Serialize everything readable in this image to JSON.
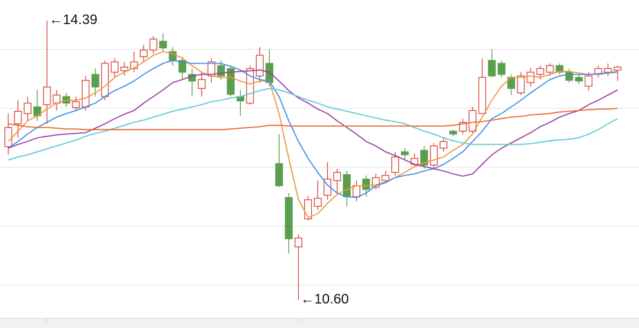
{
  "chart_data": {
    "type": "candlestick",
    "ylim": [
      10.35,
      14.67
    ],
    "yticks": [
      10.8,
      11.6,
      12.4,
      13.2,
      14.0
    ],
    "grid": true,
    "tick_labels": false,
    "up_color": "#d9473f",
    "down_color": "#5b9e4d",
    "open": [
      12.68,
      12.99,
      13.13,
      13.22,
      13.25,
      13.27,
      13.36,
      13.21,
      13.22,
      13.66,
      13.36,
      13.69,
      13.71,
      13.74,
      13.9,
      13.99,
      14.11,
      13.97,
      13.85,
      13.66,
      13.47,
      13.64,
      13.78,
      13.74,
      13.36,
      13.27,
      13.64,
      13.81,
      12.45,
      11.99,
      11.32,
      11.7,
      11.87,
      12.02,
      12.22,
      12.3,
      12.0,
      12.24,
      12.13,
      12.22,
      12.33,
      12.61,
      12.44,
      12.63,
      12.43,
      12.66,
      12.89,
      12.89,
      12.89,
      13.13,
      13.85,
      13.81,
      13.62,
      13.41,
      13.55,
      13.66,
      13.69,
      13.78,
      13.69,
      13.62,
      13.5,
      13.66,
      13.69,
      13.72
    ],
    "high": [
      13.13,
      13.31,
      13.36,
      13.45,
      14.39,
      13.45,
      13.41,
      13.36,
      13.64,
      13.74,
      13.85,
      13.88,
      13.83,
      13.97,
      14.06,
      14.18,
      14.22,
      14.03,
      13.9,
      13.74,
      13.69,
      13.88,
      13.85,
      13.78,
      13.45,
      13.78,
      14.03,
      14.0,
      12.85,
      12.05,
      11.49,
      12.01,
      12.22,
      12.47,
      12.38,
      12.35,
      12.22,
      12.29,
      12.31,
      12.35,
      12.61,
      12.66,
      12.59,
      12.69,
      12.73,
      12.8,
      12.91,
      13.06,
      13.22,
      13.88,
      14.0,
      13.85,
      13.66,
      13.69,
      13.75,
      13.78,
      13.81,
      13.81,
      13.74,
      13.66,
      13.69,
      13.78,
      13.81,
      13.78
    ],
    "low": [
      12.57,
      12.8,
      13.03,
      13.03,
      12.99,
      13.17,
      13.22,
      13.16,
      13.17,
      13.36,
      13.31,
      13.62,
      13.64,
      13.69,
      13.83,
      13.94,
      13.97,
      13.78,
      13.59,
      13.36,
      13.36,
      13.55,
      13.59,
      13.36,
      13.1,
      13.25,
      13.55,
      13.5,
      12.13,
      11.23,
      10.6,
      11.68,
      11.82,
      11.96,
      12.05,
      11.87,
      11.94,
      12.0,
      12.1,
      12.19,
      12.29,
      12.5,
      12.41,
      12.38,
      12.38,
      12.61,
      12.82,
      12.85,
      12.87,
      13.13,
      13.62,
      13.62,
      13.38,
      13.38,
      13.5,
      13.59,
      13.64,
      13.66,
      13.55,
      13.53,
      13.44,
      13.62,
      13.64,
      13.57
    ],
    "close": [
      12.94,
      13.16,
      13.27,
      13.1,
      13.49,
      13.38,
      13.27,
      13.29,
      13.58,
      13.49,
      13.81,
      13.83,
      13.76,
      13.83,
      13.99,
      14.14,
      14.02,
      13.85,
      13.69,
      13.57,
      13.59,
      13.83,
      13.64,
      13.39,
      13.3,
      13.74,
      13.92,
      13.55,
      12.15,
      11.43,
      11.44,
      11.96,
      11.98,
      12.24,
      12.33,
      12.0,
      12.15,
      12.1,
      12.26,
      12.29,
      12.54,
      12.57,
      12.52,
      12.43,
      12.69,
      12.75,
      12.85,
      13.01,
      13.17,
      13.62,
      13.64,
      13.66,
      13.47,
      13.64,
      13.69,
      13.74,
      13.78,
      13.69,
      13.58,
      13.57,
      13.64,
      13.74,
      13.74,
      13.76
    ],
    "series": [
      {
        "color": "#f0953a",
        "values": [
          12.75,
          12.89,
          13.03,
          13.1,
          13.19,
          13.27,
          13.31,
          13.31,
          13.34,
          13.41,
          13.5,
          13.62,
          13.69,
          13.75,
          13.83,
          13.92,
          13.97,
          13.94,
          13.88,
          13.78,
          13.69,
          13.64,
          13.62,
          13.62,
          13.57,
          13.53,
          13.57,
          13.57,
          13.13,
          12.52,
          11.96,
          11.72,
          11.77,
          11.91,
          12.03,
          12.1,
          12.15,
          12.15,
          12.16,
          12.2,
          12.26,
          12.33,
          12.41,
          12.46,
          12.5,
          12.54,
          12.63,
          12.71,
          12.85,
          13.08,
          13.31,
          13.5,
          13.62,
          13.62,
          13.64,
          13.62,
          13.66,
          13.7,
          13.7,
          13.68,
          13.66,
          13.66,
          13.68,
          13.69
        ]
      },
      {
        "color": "#3d8fe8",
        "values": [
          12.66,
          12.75,
          12.85,
          12.94,
          13.01,
          13.08,
          13.13,
          13.17,
          13.22,
          13.27,
          13.36,
          13.44,
          13.5,
          13.57,
          13.66,
          13.74,
          13.81,
          13.85,
          13.83,
          13.81,
          13.81,
          13.81,
          13.81,
          13.77,
          13.72,
          13.64,
          13.59,
          13.57,
          13.36,
          13.03,
          12.75,
          12.52,
          12.33,
          12.16,
          12.05,
          12.0,
          11.99,
          12.05,
          12.15,
          12.19,
          12.26,
          12.29,
          12.31,
          12.35,
          12.38,
          12.44,
          12.52,
          12.61,
          12.75,
          12.89,
          13.06,
          13.13,
          13.22,
          13.31,
          13.41,
          13.5,
          13.59,
          13.64,
          13.66,
          13.66,
          13.66,
          13.67,
          13.68,
          13.7
        ]
      },
      {
        "color": "#9b3fa3",
        "values": [
          12.66,
          12.71,
          12.75,
          12.8,
          12.82,
          12.84,
          12.85,
          12.86,
          12.87,
          12.93,
          12.99,
          13.06,
          13.12,
          13.17,
          13.27,
          13.36,
          13.45,
          13.55,
          13.59,
          13.64,
          13.66,
          13.66,
          13.68,
          13.69,
          13.7,
          13.71,
          13.72,
          13.69,
          13.57,
          13.44,
          13.34,
          13.27,
          13.19,
          13.13,
          13.03,
          12.94,
          12.85,
          12.75,
          12.69,
          12.61,
          12.56,
          12.5,
          12.44,
          12.41,
          12.38,
          12.35,
          12.31,
          12.28,
          12.31,
          12.44,
          12.57,
          12.66,
          12.73,
          12.8,
          12.87,
          12.95,
          13.01,
          13.08,
          13.13,
          13.17,
          13.25,
          13.31,
          13.38,
          13.45
        ]
      },
      {
        "color": "#5cc8d6",
        "values": [
          12.5,
          12.54,
          12.57,
          12.61,
          12.65,
          12.69,
          12.73,
          12.77,
          12.82,
          12.86,
          12.89,
          12.93,
          12.97,
          13.01,
          13.04,
          13.08,
          13.12,
          13.16,
          13.19,
          13.22,
          13.25,
          13.29,
          13.31,
          13.34,
          13.36,
          13.4,
          13.44,
          13.47,
          13.45,
          13.41,
          13.36,
          13.31,
          13.27,
          13.22,
          13.19,
          13.16,
          13.13,
          13.1,
          13.07,
          13.04,
          13.02,
          12.99,
          12.94,
          12.89,
          12.85,
          12.8,
          12.76,
          12.73,
          12.71,
          12.71,
          12.71,
          12.71,
          12.71,
          12.71,
          12.72,
          12.74,
          12.76,
          12.77,
          12.78,
          12.8,
          12.85,
          12.91,
          12.99,
          13.06
        ]
      },
      {
        "color": "#e8692e",
        "values": [
          12.99,
          12.97,
          12.95,
          12.94,
          12.94,
          12.93,
          12.92,
          12.92,
          12.91,
          12.91,
          12.91,
          12.91,
          12.91,
          12.91,
          12.91,
          12.91,
          12.91,
          12.91,
          12.91,
          12.91,
          12.91,
          12.91,
          12.91,
          12.92,
          12.93,
          12.94,
          12.95,
          12.97,
          12.97,
          12.96,
          12.96,
          12.96,
          12.96,
          12.96,
          12.96,
          12.96,
          12.96,
          12.96,
          12.96,
          12.96,
          12.96,
          12.96,
          12.96,
          12.96,
          12.96,
          12.96,
          12.97,
          12.99,
          13.01,
          13.02,
          13.04,
          13.06,
          13.08,
          13.09,
          13.11,
          13.12,
          13.13,
          13.15,
          13.16,
          13.17,
          13.18,
          13.19,
          13.19,
          13.2
        ]
      }
    ],
    "annotations": [
      {
        "text": "←14.39",
        "value": 14.39
      },
      {
        "text": "←10.60",
        "value": 10.6
      }
    ]
  }
}
